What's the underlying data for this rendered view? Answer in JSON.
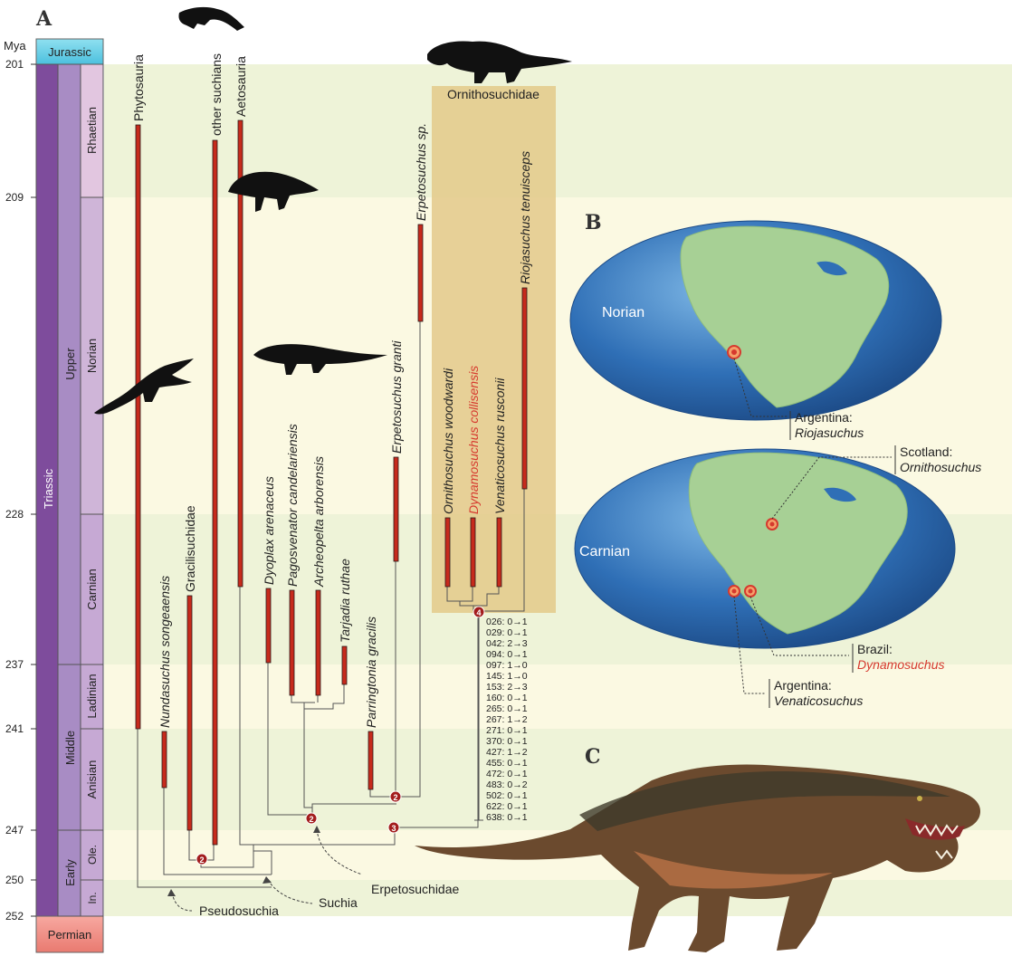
{
  "panels": {
    "a": "A",
    "b": "B",
    "c": "C"
  },
  "timescale": {
    "unit": "Mya",
    "ticks": [
      "201",
      "209",
      "228",
      "237",
      "241",
      "247",
      "250",
      "252"
    ],
    "periods": {
      "jurassic": "Jurassic",
      "triassic": "Triassic",
      "permian": "Permian"
    },
    "epochs": {
      "upper": "Upper",
      "middle": "Middle",
      "early": "Early"
    },
    "stages": {
      "rhaetian": "Rhaetian",
      "norian": "Norian",
      "carnian": "Carnian",
      "ladinian": "Ladinian",
      "anisian": "Anisian",
      "olenekian": "Ole.",
      "induan": "In."
    }
  },
  "taxa": {
    "phytosauria": "Phytosauria",
    "other_suchians": "other suchians",
    "aetosauria": "Aetosauria",
    "nundasuchus": "Nundasuchus songeaensis",
    "gracilisuchidae": "Gracilisuchidae",
    "dyoplax": "Dyoplax arenaceus",
    "pagosvenator": "Pagosvenator candelariensis",
    "archeopelta": "Archeopelta arborensis",
    "tarjadia": "Tarjadia ruthae",
    "parringtonia": "Parringtonia gracilis",
    "erpetosuchus_granti": "Erpetosuchus granti",
    "erpetosuchus_sp": "Erpetosuchus sp.",
    "ornithosuchus": "Ornithosuchus woodwardi",
    "dynamosuchus": "Dynamosuchus collisensis",
    "venaticosuchus": "Venaticosuchus rusconii",
    "riojasuchus": "Riojasuchus tenuisceps"
  },
  "clades": {
    "ornithosuchidae": "Ornithosuchidae",
    "erpetosuchidae": "Erpetosuchidae",
    "suchia": "Suchia",
    "pseudosuchia": "Pseudosuchia"
  },
  "nodes": {
    "n2a": "2",
    "n2b": "2",
    "n2c": "2",
    "n3": "3",
    "n4": "4"
  },
  "character_changes": [
    "026: 0→1",
    "029: 0→1",
    "042: 2→3",
    "094: 0→1",
    "097: 1→0",
    "145: 1→0",
    "153: 2→3",
    "160: 0→1",
    "265: 0→1",
    "267: 1→2",
    "271: 0→1",
    "370: 0→1",
    "427: 1→2",
    "455: 0→1",
    "472: 0→1",
    "483: 0→2",
    "502: 0→1",
    "622: 0→1",
    "638: 0→1"
  ],
  "maps": {
    "norian": {
      "title": "Norian",
      "localities": [
        {
          "country": "Argentina:",
          "taxon": "Riojasuchus"
        }
      ]
    },
    "carnian": {
      "title": "Carnian",
      "localities": [
        {
          "country": "Scotland:",
          "taxon": "Ornithosuchus"
        },
        {
          "country": "Brazil:",
          "taxon": "Dynamosuchus"
        },
        {
          "country": "Argentina:",
          "taxon": "Venaticosuchus"
        }
      ]
    }
  },
  "colors": {
    "highlight_red": "#d6392e",
    "range_bar": "#c62a1c",
    "ornithosuchid_box": "#e3c98a",
    "triassic_purple": "#7e4c9c",
    "map_ocean": "#2f6fb6",
    "map_land": "#a7d095"
  }
}
